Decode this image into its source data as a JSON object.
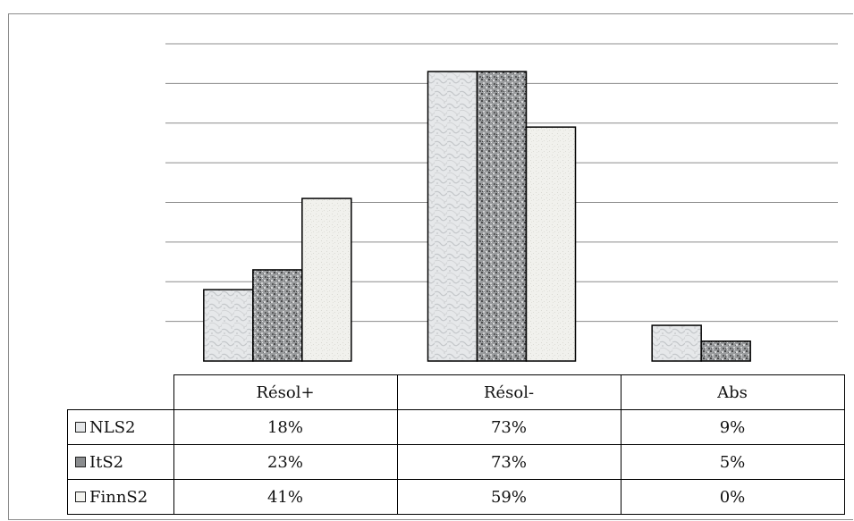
{
  "chart_data": {
    "type": "bar",
    "title": "",
    "xlabel": "",
    "ylabel": "",
    "ylim": [
      0,
      80
    ],
    "grid": true,
    "legend": "data-table",
    "categories": [
      "Résol+",
      "Résol-",
      "Abs"
    ],
    "series": [
      {
        "name": "NLS2",
        "values": [
          18,
          73,
          9
        ],
        "labels": [
          "18%",
          "73%",
          "9%"
        ],
        "color": "#e4e6e8"
      },
      {
        "name": "ItS2",
        "values": [
          23,
          73,
          5
        ],
        "labels": [
          "23%",
          "73%",
          "5%"
        ],
        "color": "#8a8c8e"
      },
      {
        "name": "FinnS2",
        "values": [
          41,
          59,
          0
        ],
        "labels": [
          "41%",
          "59%",
          "0%"
        ],
        "color": "#f3f3ef"
      }
    ]
  }
}
